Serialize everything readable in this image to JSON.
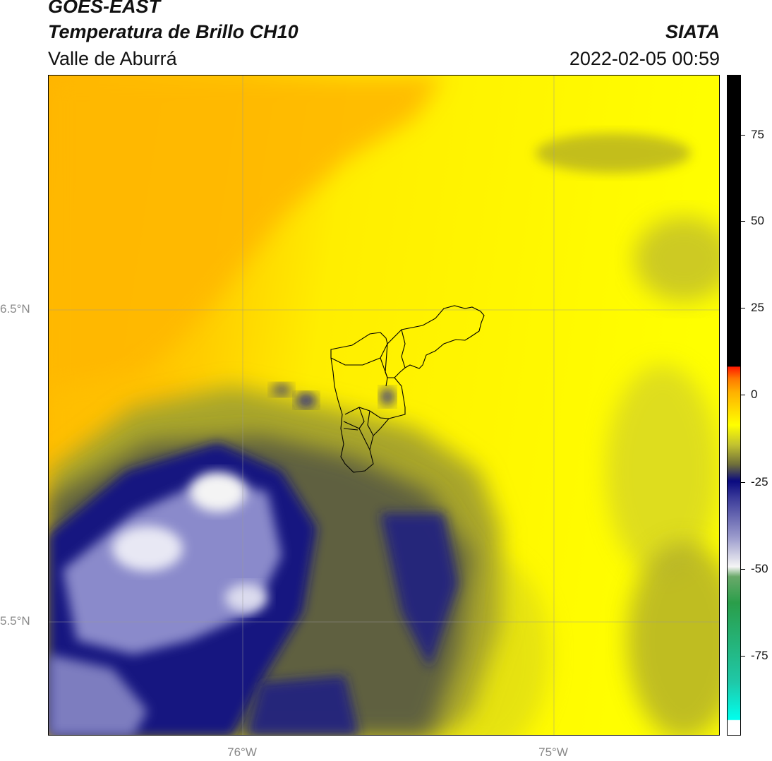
{
  "header": {
    "title_line1": "GOES-EAST",
    "title_line2": "Temperatura de Brillo CH10",
    "subtitle": "Valle de Aburrá",
    "organization": "SIATA",
    "timestamp": "2022-02-05 00:59"
  },
  "map": {
    "lat_labels": [
      "6.5°N",
      "5.5°N"
    ],
    "lon_labels": [
      "76°W",
      "75°W"
    ],
    "colors": {
      "orange": "#ffb800",
      "yellow": "#ffff00",
      "olive": "#a6a51e",
      "dark_olive": "#5d5f3e",
      "navy": "#0b0b7a",
      "lavender": "#8585c4",
      "white": "#f2f2f2",
      "boundary": "#000000"
    }
  },
  "colorbar": {
    "tick_labels": [
      "75",
      "50",
      "25",
      "0",
      "-25",
      "-50",
      "-75"
    ],
    "stops": [
      "#00ffee",
      "#2a9e4a",
      "#f5f5f5",
      "#8080c0",
      "#0a0a80",
      "#6e6e3a",
      "#ffff00",
      "#ff9a00",
      "#ff1a00",
      "#000000"
    ]
  }
}
